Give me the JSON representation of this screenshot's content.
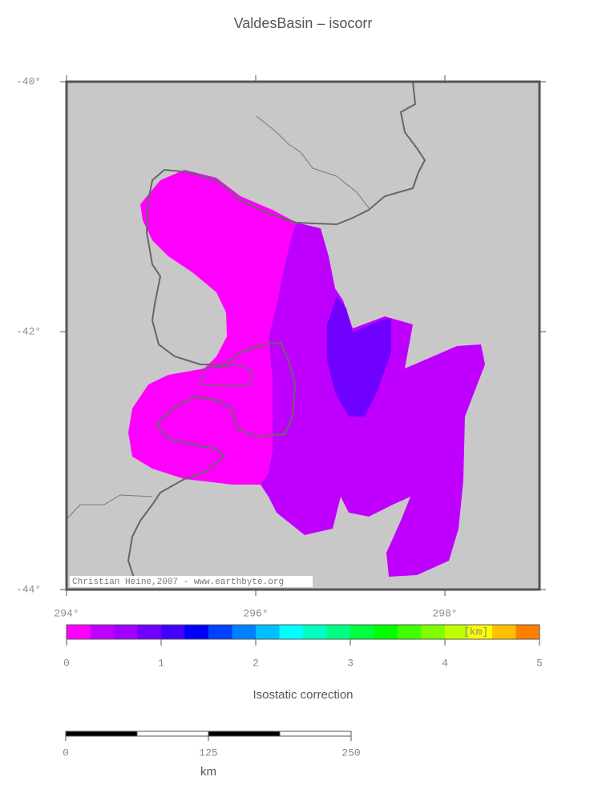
{
  "title": "ValdesBasin – isocorr",
  "map": {
    "projection": "mercator",
    "xlim": [
      294,
      299
    ],
    "ylim": [
      -44,
      -40
    ],
    "xticks": [
      {
        "value": 294,
        "label": "294°"
      },
      {
        "value": 296,
        "label": "296°"
      },
      {
        "value": 298,
        "label": "298°"
      }
    ],
    "yticks": [
      {
        "value": -40,
        "label": "-40°"
      },
      {
        "value": -42,
        "label": "-42°"
      },
      {
        "value": -44,
        "label": "-44°"
      }
    ],
    "credit": "Christian Heine,2007 - www.earthbyte.org"
  },
  "colorbar": {
    "lim": [
      0,
      5
    ],
    "ticks": [
      0,
      1,
      2,
      3,
      4,
      5
    ],
    "unit": "[km]",
    "label": "Isostatic correction",
    "colors": [
      "#ff00ff",
      "#c000ff",
      "#a000ff",
      "#7000ff",
      "#4000ff",
      "#0000ff",
      "#0040ff",
      "#0080ff",
      "#00c0ff",
      "#00ffff",
      "#00ffc0",
      "#00ff80",
      "#00ff40",
      "#00ff00",
      "#40ff00",
      "#80ff00",
      "#c0ff00",
      "#ffff00",
      "#ffc000",
      "#ff8000"
    ]
  },
  "scalebar": {
    "lim": [
      0,
      250
    ],
    "ticks": [
      0,
      125,
      250
    ],
    "unit": "km"
  }
}
